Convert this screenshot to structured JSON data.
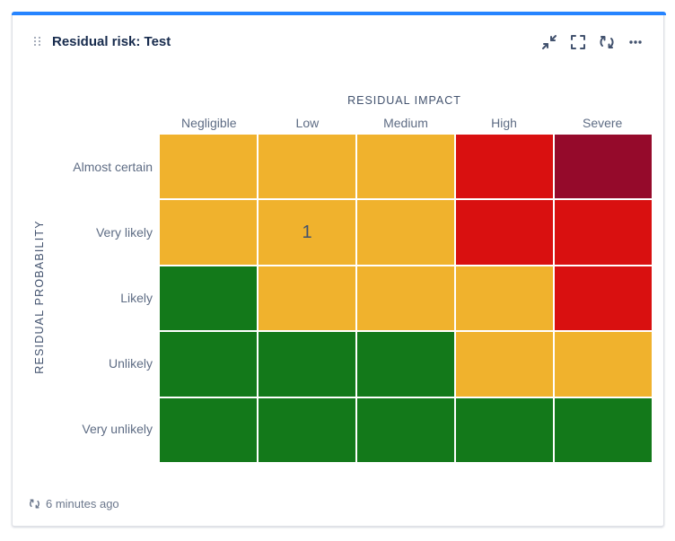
{
  "widget": {
    "title": "Residual risk: Test",
    "toolbar": [
      {
        "icon": "collapse-icon"
      },
      {
        "icon": "fullscreen-icon"
      },
      {
        "icon": "refresh-icon"
      },
      {
        "icon": "more-icon"
      }
    ]
  },
  "matrix": {
    "x_axis_title": "RESIDUAL IMPACT",
    "y_axis_title": "RESIDUAL PROBABILITY",
    "columns": [
      "Negligible",
      "Low",
      "Medium",
      "High",
      "Severe"
    ],
    "rows": [
      "Almost certain",
      "Very likely",
      "Likely",
      "Unlikely",
      "Very unlikely"
    ],
    "colors": {
      "low": "#13791a",
      "medium": "#f0b22d",
      "high": "#d91010",
      "critical": "#950a2b"
    },
    "cells": [
      [
        {
          "level": "medium",
          "count": ""
        },
        {
          "level": "medium",
          "count": ""
        },
        {
          "level": "medium",
          "count": ""
        },
        {
          "level": "high",
          "count": ""
        },
        {
          "level": "critical",
          "count": ""
        }
      ],
      [
        {
          "level": "medium",
          "count": ""
        },
        {
          "level": "medium",
          "count": "1"
        },
        {
          "level": "medium",
          "count": ""
        },
        {
          "level": "high",
          "count": ""
        },
        {
          "level": "high",
          "count": ""
        }
      ],
      [
        {
          "level": "low",
          "count": ""
        },
        {
          "level": "medium",
          "count": ""
        },
        {
          "level": "medium",
          "count": ""
        },
        {
          "level": "medium",
          "count": ""
        },
        {
          "level": "high",
          "count": ""
        }
      ],
      [
        {
          "level": "low",
          "count": ""
        },
        {
          "level": "low",
          "count": ""
        },
        {
          "level": "low",
          "count": ""
        },
        {
          "level": "medium",
          "count": ""
        },
        {
          "level": "medium",
          "count": ""
        }
      ],
      [
        {
          "level": "low",
          "count": ""
        },
        {
          "level": "low",
          "count": ""
        },
        {
          "level": "low",
          "count": ""
        },
        {
          "level": "low",
          "count": ""
        },
        {
          "level": "low",
          "count": ""
        }
      ]
    ]
  },
  "footer": {
    "icon": "refresh-small-icon",
    "updated": "6 minutes ago"
  }
}
